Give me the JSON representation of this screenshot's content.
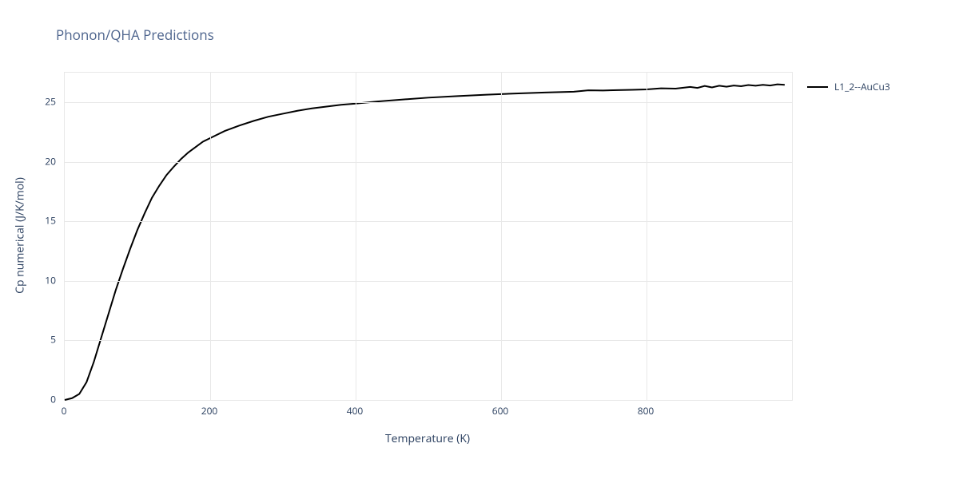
{
  "chart": {
    "type": "line",
    "title": "Phonon/QHA Predictions",
    "title_fontsize": 17,
    "title_color": "#4d648d",
    "background_color": "#ffffff",
    "grid_color": "#e8e8e8",
    "border_color": "#e8e8e8",
    "xlabel": "Temperature (K)",
    "ylabel": "Cp numerical (J/K/mol)",
    "label_fontsize": 14,
    "label_color": "#2a3f5f",
    "tick_fontsize": 12,
    "xlim": [
      0,
      1000
    ],
    "ylim": [
      0,
      27.5
    ],
    "x_ticks": [
      0,
      200,
      400,
      600,
      800
    ],
    "y_ticks": [
      0,
      5,
      10,
      15,
      20,
      25
    ],
    "line_width": 2,
    "legend": {
      "position": "right",
      "items": [
        {
          "label": "L1_2--AuCu3",
          "color": "#000000"
        }
      ]
    },
    "series": [
      {
        "name": "L1_2--AuCu3",
        "color": "#000000",
        "x": [
          0,
          10,
          20,
          30,
          40,
          50,
          60,
          70,
          80,
          90,
          100,
          110,
          120,
          130,
          140,
          150,
          160,
          170,
          180,
          190,
          200,
          220,
          240,
          260,
          280,
          300,
          320,
          340,
          360,
          380,
          400,
          430,
          460,
          500,
          540,
          580,
          620,
          660,
          700,
          720,
          740,
          760,
          780,
          800,
          820,
          840,
          860,
          870,
          880,
          890,
          900,
          910,
          920,
          930,
          940,
          950,
          960,
          970,
          980,
          990
        ],
        "y": [
          0,
          0.15,
          0.5,
          1.5,
          3.2,
          5.2,
          7.2,
          9.2,
          11.0,
          12.7,
          14.3,
          15.7,
          17.0,
          18.0,
          18.9,
          19.6,
          20.25,
          20.8,
          21.25,
          21.7,
          22.0,
          22.6,
          23.05,
          23.45,
          23.8,
          24.05,
          24.3,
          24.5,
          24.65,
          24.8,
          24.9,
          25.08,
          25.22,
          25.4,
          25.53,
          25.65,
          25.75,
          25.83,
          25.9,
          26.02,
          26.0,
          26.03,
          26.06,
          26.09,
          26.18,
          26.16,
          26.3,
          26.22,
          26.38,
          26.26,
          26.4,
          26.32,
          26.42,
          26.36,
          26.46,
          26.4,
          26.48,
          26.42,
          26.52,
          26.48
        ]
      }
    ]
  }
}
